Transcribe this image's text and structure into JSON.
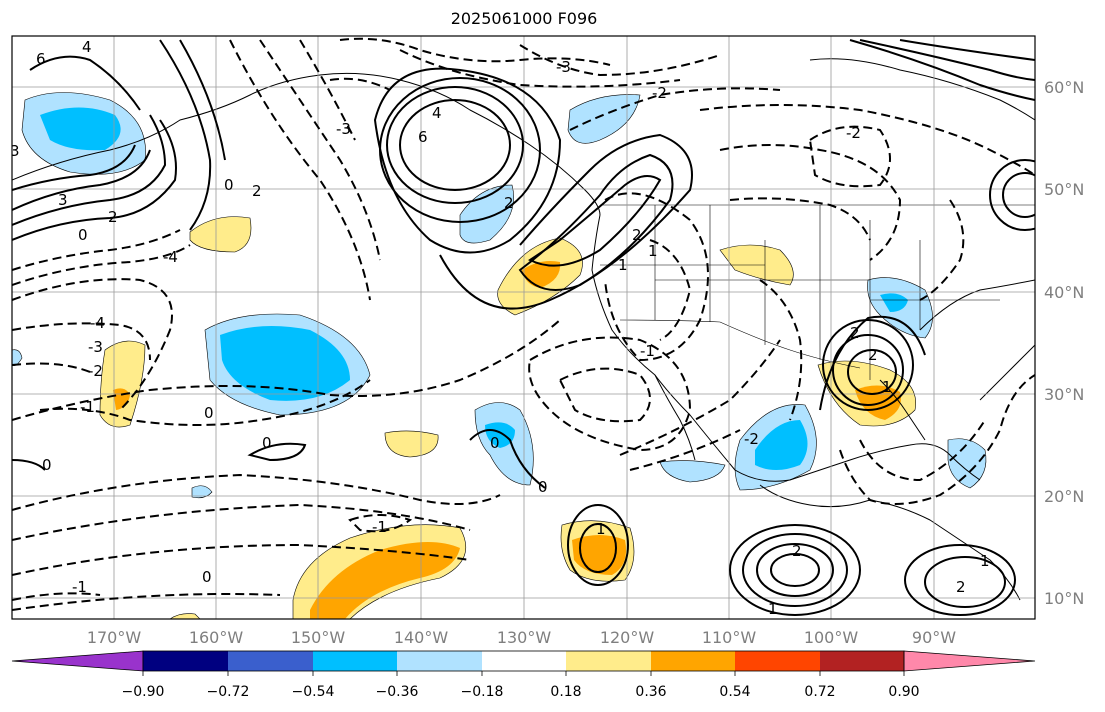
{
  "title": "2025061000 F096",
  "map": {
    "lon_labels": [
      "170°W",
      "160°W",
      "150°W",
      "140°W",
      "130°W",
      "120°W",
      "110°W",
      "100°W",
      "90°W"
    ],
    "lat_labels": [
      "60°N",
      "50°N",
      "40°N",
      "30°N",
      "20°N",
      "10°N"
    ],
    "contour_labels": [
      "6",
      "4",
      "3",
      "2",
      "1",
      "0",
      "-1",
      "-2",
      "-3",
      "-4"
    ]
  },
  "colorbar": {
    "colors": [
      "#9933cc",
      "#000080",
      "#3a5fcd",
      "#00bfff",
      "#b0e2ff",
      "#ffffff",
      "#ffec8b",
      "#ffa500",
      "#ff4500",
      "#b22222",
      "#ff88aa"
    ],
    "tick_labels": [
      "−0.90",
      "−0.72",
      "−0.54",
      "−0.36",
      "−0.18",
      "0.18",
      "0.36",
      "0.54",
      "0.72",
      "0.90"
    ]
  },
  "legend_colors": {
    "light_blue": "#b0e2ff",
    "blue": "#00bfff",
    "light_yellow": "#ffec8b",
    "orange": "#ffa500"
  }
}
